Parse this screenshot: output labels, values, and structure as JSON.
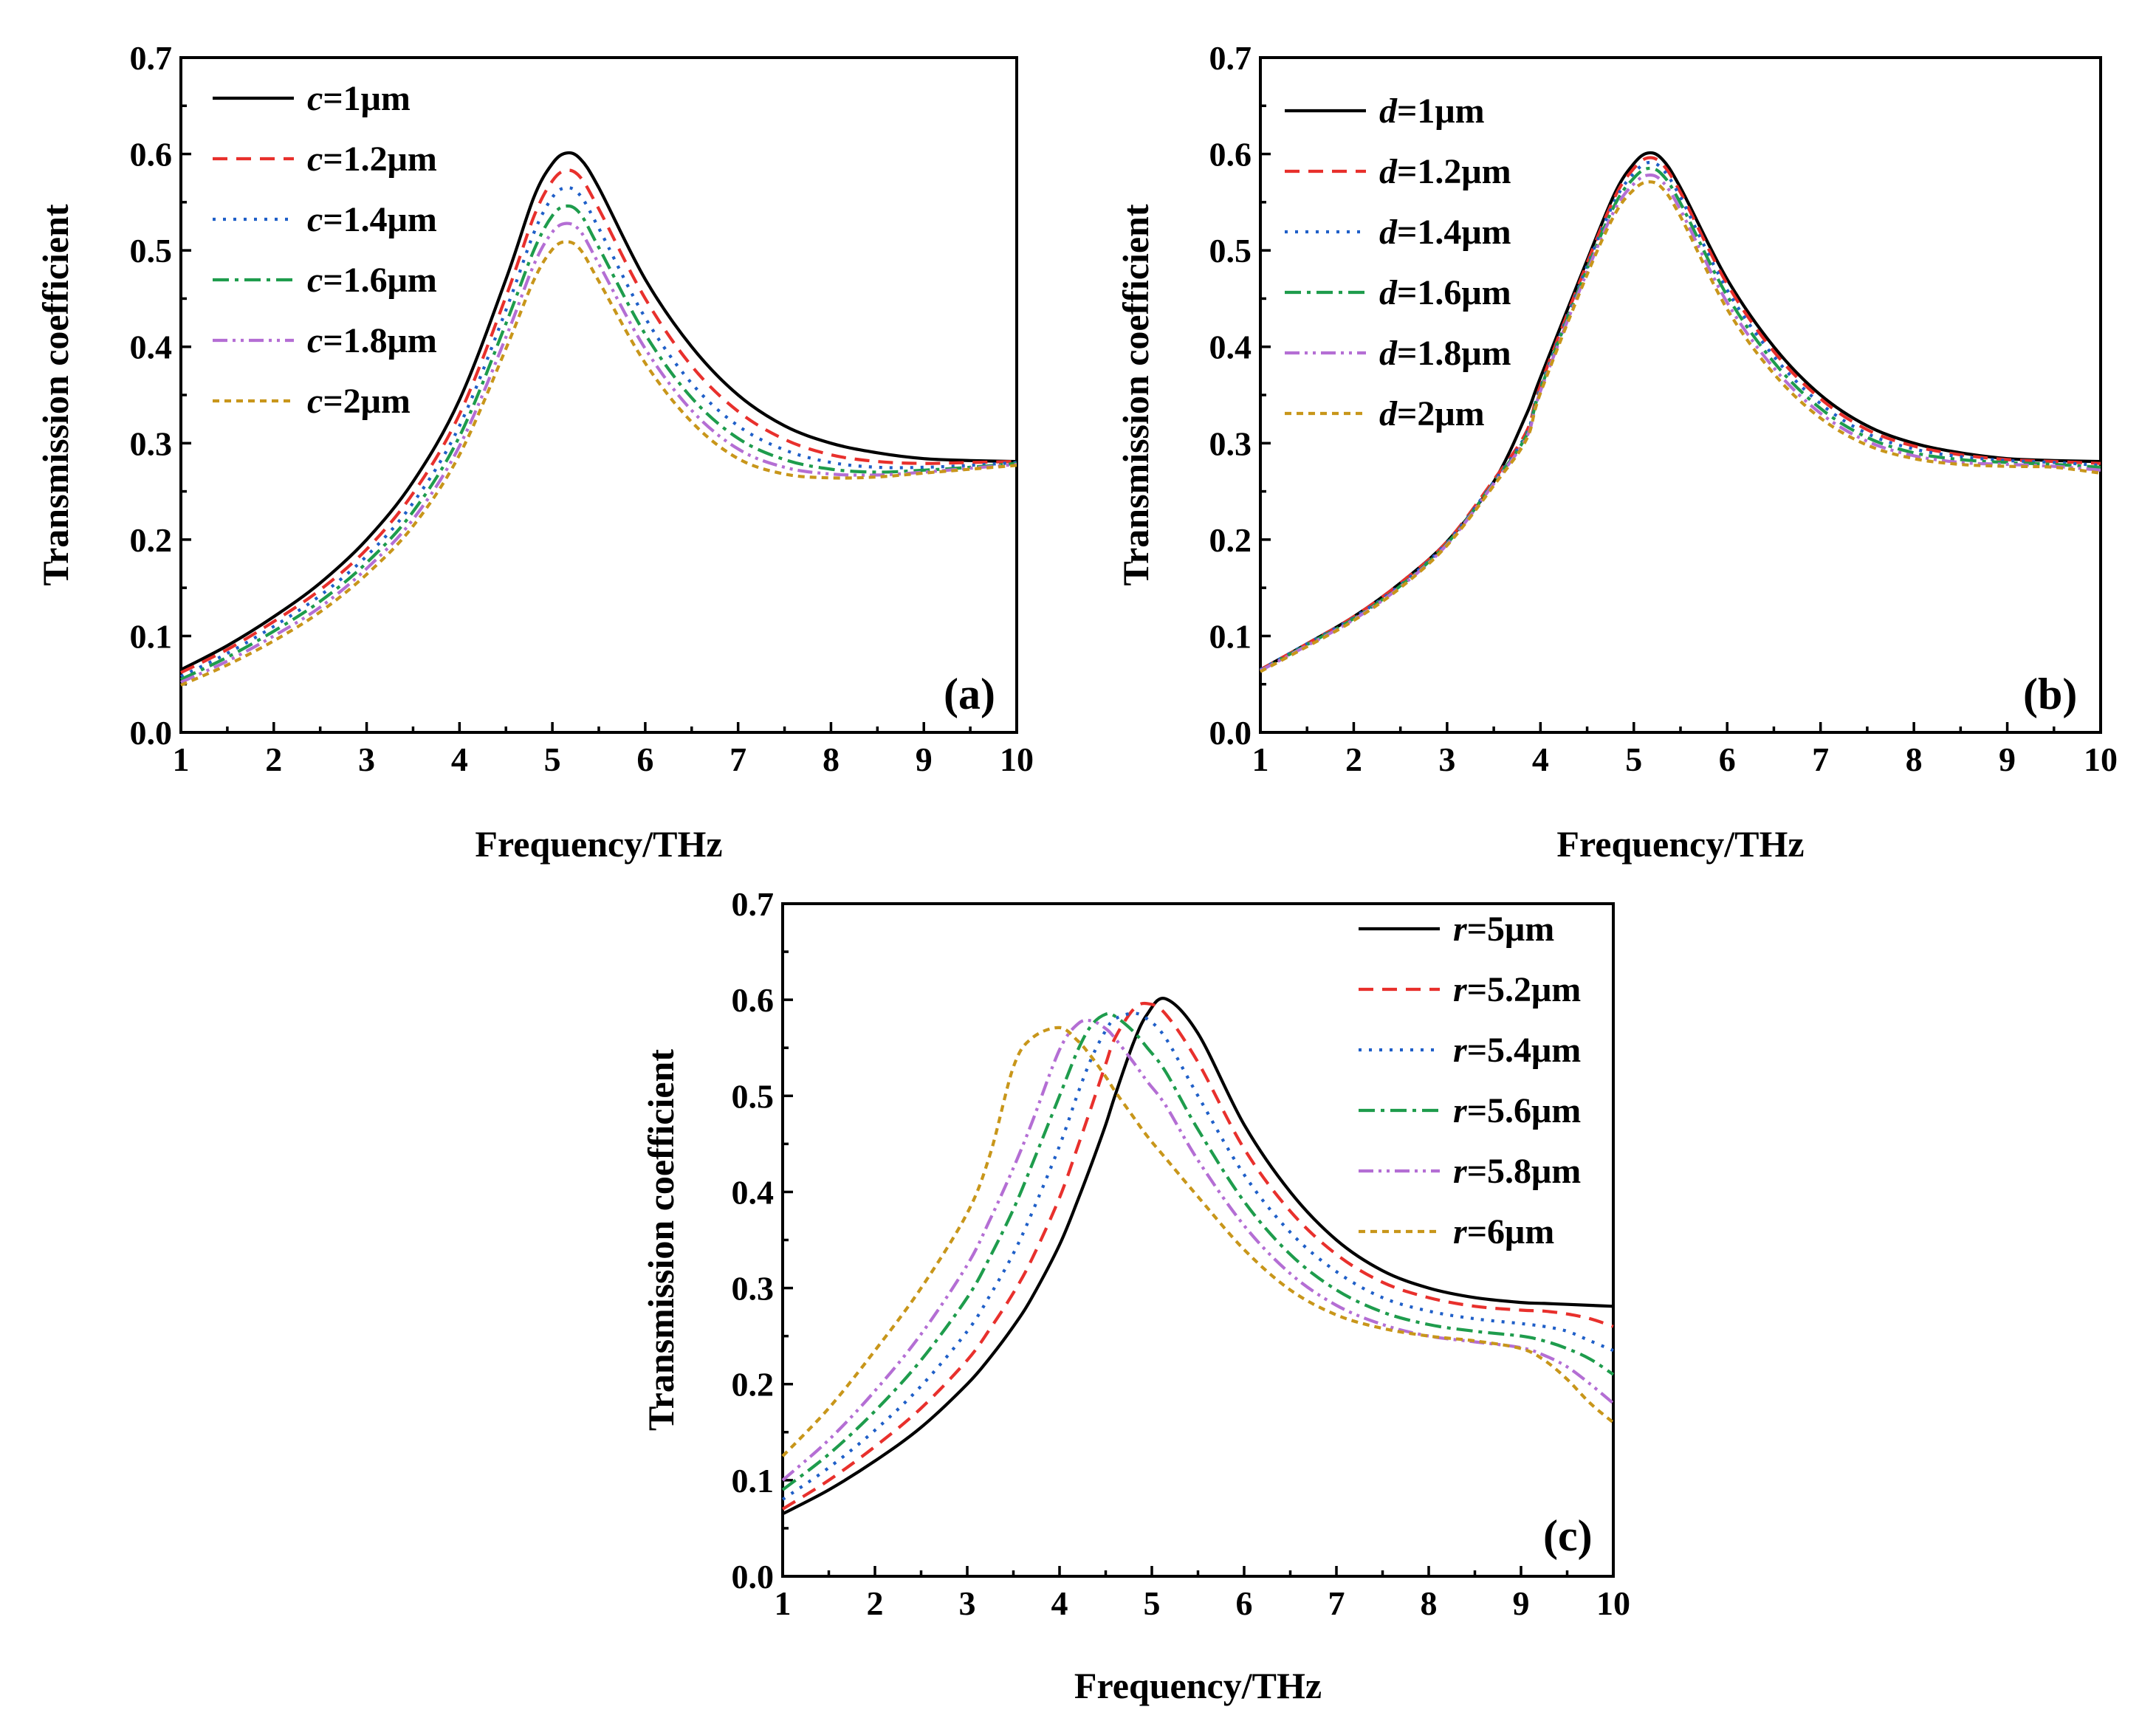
{
  "chart_data": [
    {
      "type": "line",
      "panel_label": "(a)",
      "xlabel": "Frequency/THz",
      "ylabel": "Transmission coefficient",
      "xlim": [
        1,
        10
      ],
      "ylim": [
        0,
        0.7
      ],
      "xticks": [
        "1",
        "2",
        "3",
        "4",
        "5",
        "6",
        "7",
        "8",
        "9",
        "10"
      ],
      "yticks": [
        "0.0",
        "0.1",
        "0.2",
        "0.3",
        "0.4",
        "0.5",
        "0.6",
        "0.7"
      ],
      "legend_position": "top-left",
      "x": [
        1,
        1.5,
        2,
        2.5,
        3,
        3.5,
        4,
        4.5,
        4.8,
        5.0,
        5.15,
        5.3,
        5.5,
        6,
        6.5,
        7,
        7.5,
        8,
        8.5,
        9,
        9.5,
        10
      ],
      "series": [
        {
          "name_var": "c",
          "name_value": "=1μm",
          "color": "#000000",
          "dash": "",
          "values": [
            0.065,
            0.09,
            0.12,
            0.155,
            0.2,
            0.26,
            0.345,
            0.47,
            0.555,
            0.59,
            0.601,
            0.595,
            0.565,
            0.47,
            0.4,
            0.35,
            0.318,
            0.3,
            0.29,
            0.284,
            0.282,
            0.281
          ]
        },
        {
          "name_var": "c",
          "name_value": "=1.2μm",
          "color": "#e8302c",
          "dash": "20,12",
          "values": [
            0.062,
            0.086,
            0.115,
            0.148,
            0.19,
            0.248,
            0.33,
            0.452,
            0.535,
            0.572,
            0.583,
            0.576,
            0.543,
            0.45,
            0.38,
            0.333,
            0.304,
            0.288,
            0.281,
            0.279,
            0.28,
            0.281
          ]
        },
        {
          "name_var": "c",
          "name_value": "=1.4μm",
          "color": "#1f5fc8",
          "dash": "4,10",
          "values": [
            0.058,
            0.082,
            0.11,
            0.142,
            0.183,
            0.238,
            0.318,
            0.438,
            0.518,
            0.555,
            0.565,
            0.557,
            0.523,
            0.43,
            0.362,
            0.318,
            0.293,
            0.28,
            0.275,
            0.275,
            0.277,
            0.28
          ]
        },
        {
          "name_var": "c",
          "name_value": "=1.6μm",
          "color": "#1e9c4c",
          "dash": "22,8,5,8",
          "values": [
            0.055,
            0.078,
            0.105,
            0.136,
            0.176,
            0.229,
            0.307,
            0.424,
            0.5,
            0.536,
            0.546,
            0.538,
            0.503,
            0.413,
            0.347,
            0.305,
            0.283,
            0.273,
            0.27,
            0.272,
            0.275,
            0.279
          ]
        },
        {
          "name_var": "c",
          "name_value": "=1.8μm",
          "color": "#b46ed4",
          "dash": "20,7,4,7,4,7",
          "values": [
            0.052,
            0.074,
            0.1,
            0.13,
            0.17,
            0.221,
            0.297,
            0.41,
            0.485,
            0.519,
            0.528,
            0.52,
            0.486,
            0.398,
            0.334,
            0.294,
            0.275,
            0.268,
            0.267,
            0.27,
            0.274,
            0.278
          ]
        },
        {
          "name_var": "c",
          "name_value": "=2μm",
          "color": "#c8961a",
          "dash": "9,7",
          "values": [
            0.049,
            0.07,
            0.095,
            0.125,
            0.164,
            0.214,
            0.288,
            0.398,
            0.469,
            0.501,
            0.509,
            0.501,
            0.468,
            0.383,
            0.322,
            0.284,
            0.268,
            0.264,
            0.265,
            0.269,
            0.273,
            0.277
          ]
        }
      ]
    },
    {
      "type": "line",
      "panel_label": "(b)",
      "xlabel": "Frequency/THz",
      "ylabel": "Transmission coefficient",
      "xlim": [
        1,
        10
      ],
      "ylim": [
        0,
        0.7
      ],
      "xticks": [
        "1",
        "2",
        "3",
        "4",
        "5",
        "6",
        "7",
        "8",
        "9",
        "10"
      ],
      "yticks": [
        "0.0",
        "0.1",
        "0.2",
        "0.3",
        "0.4",
        "0.5",
        "0.6",
        "0.7"
      ],
      "legend_position": "top-left",
      "x": [
        1,
        1.5,
        2,
        2.5,
        3,
        3.5,
        3.85,
        4.0,
        4.5,
        4.8,
        5.0,
        5.15,
        5.3,
        5.5,
        6,
        6.5,
        7,
        7.5,
        8,
        8.5,
        9,
        9.5,
        10
      ],
      "series": [
        {
          "name_var": "d",
          "name_value": "=1μm",
          "color": "#000000",
          "dash": "",
          "values": [
            0.065,
            0.092,
            0.12,
            0.155,
            0.198,
            0.26,
            0.33,
            0.368,
            0.49,
            0.56,
            0.59,
            0.601,
            0.595,
            0.565,
            0.47,
            0.4,
            0.35,
            0.318,
            0.3,
            0.29,
            0.284,
            0.282,
            0.281
          ]
        },
        {
          "name_var": "d",
          "name_value": "=1.2μm",
          "color": "#e8302c",
          "dash": "20,12",
          "values": [
            0.065,
            0.092,
            0.12,
            0.155,
            0.198,
            0.262,
            0.312,
            0.36,
            0.487,
            0.556,
            0.585,
            0.596,
            0.59,
            0.56,
            0.465,
            0.395,
            0.346,
            0.314,
            0.297,
            0.288,
            0.283,
            0.281,
            0.279
          ]
        },
        {
          "name_var": "d",
          "name_value": "=1.4μm",
          "color": "#1f5fc8",
          "dash": "4,10",
          "values": [
            0.065,
            0.092,
            0.119,
            0.153,
            0.197,
            0.26,
            0.31,
            0.358,
            0.484,
            0.552,
            0.58,
            0.591,
            0.585,
            0.555,
            0.459,
            0.39,
            0.341,
            0.31,
            0.294,
            0.286,
            0.282,
            0.28,
            0.277
          ]
        },
        {
          "name_var": "d",
          "name_value": "=1.6μm",
          "color": "#1e9c4c",
          "dash": "22,8,5,8",
          "values": [
            0.064,
            0.091,
            0.118,
            0.152,
            0.196,
            0.259,
            0.308,
            0.356,
            0.481,
            0.548,
            0.575,
            0.585,
            0.579,
            0.549,
            0.453,
            0.384,
            0.336,
            0.306,
            0.29,
            0.283,
            0.28,
            0.278,
            0.275
          ]
        },
        {
          "name_var": "d",
          "name_value": "=1.8μm",
          "color": "#b46ed4",
          "dash": "20,7,4,7,4,7",
          "values": [
            0.064,
            0.09,
            0.117,
            0.151,
            0.195,
            0.258,
            0.306,
            0.354,
            0.478,
            0.543,
            0.569,
            0.578,
            0.572,
            0.542,
            0.446,
            0.378,
            0.331,
            0.302,
            0.287,
            0.28,
            0.278,
            0.276,
            0.272
          ]
        },
        {
          "name_var": "d",
          "name_value": "=2μm",
          "color": "#c8961a",
          "dash": "9,7",
          "values": [
            0.063,
            0.089,
            0.116,
            0.15,
            0.194,
            0.256,
            0.304,
            0.352,
            0.475,
            0.538,
            0.563,
            0.571,
            0.565,
            0.535,
            0.439,
            0.372,
            0.326,
            0.298,
            0.284,
            0.278,
            0.276,
            0.275,
            0.269
          ]
        }
      ]
    },
    {
      "type": "line",
      "panel_label": "(c)",
      "xlabel": "Frequency/THz",
      "ylabel": "Transmission coefficient",
      "xlim": [
        1,
        10
      ],
      "ylim": [
        0,
        0.7
      ],
      "xticks": [
        "1",
        "2",
        "3",
        "4",
        "5",
        "6",
        "7",
        "8",
        "9",
        "10"
      ],
      "yticks": [
        "0.0",
        "0.1",
        "0.2",
        "0.3",
        "0.4",
        "0.5",
        "0.6",
        "0.7"
      ],
      "legend_position": "top-right",
      "x": [
        1,
        1.5,
        2,
        2.5,
        3,
        3.25,
        3.5,
        3.7,
        4,
        4.2,
        4.35,
        4.5,
        4.6,
        4.8,
        4.95,
        5.15,
        5.5,
        6,
        6.5,
        7,
        7.5,
        8,
        8.5,
        9,
        9.25,
        9.5,
        9.75,
        10
      ],
      "series": [
        {
          "name_var": "r",
          "name_value": "=5μm",
          "color": "#000000",
          "dash": "",
          "values": [
            0.065,
            0.09,
            0.12,
            0.155,
            0.2,
            0.228,
            0.26,
            0.29,
            0.345,
            0.392,
            0.43,
            0.47,
            0.5,
            0.555,
            0.585,
            0.601,
            0.565,
            0.47,
            0.4,
            0.35,
            0.318,
            0.3,
            0.29,
            0.285,
            0.284,
            0.283,
            0.282,
            0.281
          ]
        },
        {
          "name_var": "r",
          "name_value": "=5.2μm",
          "color": "#e8302c",
          "dash": "20,12",
          "values": [
            0.07,
            0.1,
            0.135,
            0.175,
            0.225,
            0.258,
            0.295,
            0.33,
            0.394,
            0.448,
            0.49,
            0.533,
            0.56,
            0.59,
            0.596,
            0.585,
            0.535,
            0.445,
            0.38,
            0.335,
            0.306,
            0.29,
            0.281,
            0.277,
            0.276,
            0.273,
            0.268,
            0.26
          ]
        },
        {
          "name_var": "r",
          "name_value": "=5.4μm",
          "color": "#1f5fc8",
          "dash": "4,10",
          "values": [
            0.08,
            0.113,
            0.152,
            0.198,
            0.255,
            0.293,
            0.336,
            0.378,
            0.448,
            0.503,
            0.54,
            0.568,
            0.58,
            0.586,
            0.58,
            0.56,
            0.5,
            0.418,
            0.358,
            0.317,
            0.29,
            0.276,
            0.268,
            0.263,
            0.26,
            0.255,
            0.245,
            0.235
          ]
        },
        {
          "name_var": "r",
          "name_value": "=5.6μm",
          "color": "#1e9c4c",
          "dash": "22,8,5,8",
          "values": [
            0.09,
            0.127,
            0.172,
            0.225,
            0.29,
            0.333,
            0.382,
            0.428,
            0.5,
            0.548,
            0.574,
            0.585,
            0.583,
            0.567,
            0.55,
            0.525,
            0.465,
            0.39,
            0.335,
            0.298,
            0.275,
            0.262,
            0.255,
            0.25,
            0.245,
            0.237,
            0.226,
            0.21
          ]
        },
        {
          "name_var": "r",
          "name_value": "=5.8μm",
          "color": "#b46ed4",
          "dash": "20,7,4,7,4,7",
          "values": [
            0.1,
            0.142,
            0.193,
            0.252,
            0.324,
            0.372,
            0.425,
            0.472,
            0.548,
            0.575,
            0.578,
            0.57,
            0.56,
            0.535,
            0.515,
            0.49,
            0.433,
            0.365,
            0.315,
            0.282,
            0.262,
            0.25,
            0.244,
            0.238,
            0.23,
            0.218,
            0.2,
            0.18
          ]
        },
        {
          "name_var": "r",
          "name_value": "=6μm",
          "color": "#c8961a",
          "dash": "9,7",
          "values": [
            0.125,
            0.175,
            0.235,
            0.3,
            0.378,
            0.44,
            0.53,
            0.56,
            0.571,
            0.557,
            0.54,
            0.52,
            0.505,
            0.478,
            0.458,
            0.435,
            0.395,
            0.34,
            0.298,
            0.272,
            0.258,
            0.25,
            0.245,
            0.237,
            0.225,
            0.205,
            0.18,
            0.16
          ]
        }
      ]
    }
  ]
}
